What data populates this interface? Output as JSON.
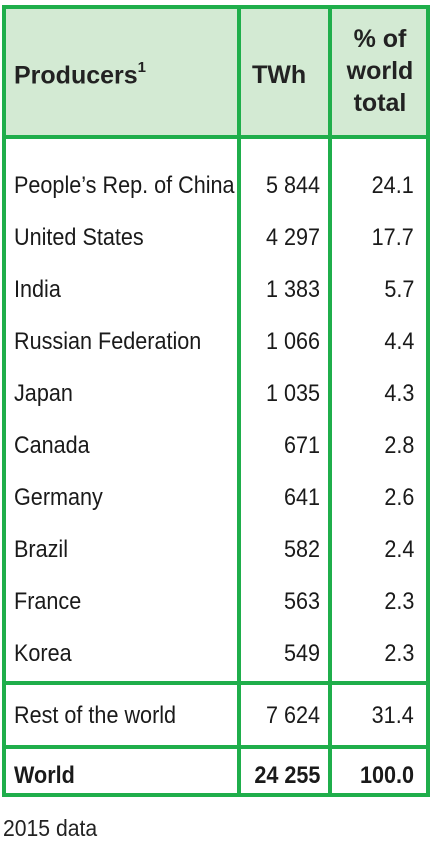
{
  "header": {
    "producers": "Producers",
    "producers_sup": "1",
    "twh": "TWh",
    "pct_line1": "% of",
    "pct_line2": "world",
    "pct_line3": "total"
  },
  "rows": [
    {
      "name": "People’s Rep. of China",
      "twh": "5 844",
      "pct": "24.1"
    },
    {
      "name": "United States",
      "twh": "4 297",
      "pct": "17.7"
    },
    {
      "name": "India",
      "twh": "1 383",
      "pct": "5.7"
    },
    {
      "name": "Russian Federation",
      "twh": "1 066",
      "pct": "4.4"
    },
    {
      "name": "Japan",
      "twh": "1 035",
      "pct": "4.3"
    },
    {
      "name": "Canada",
      "twh": "671",
      "pct": "2.8"
    },
    {
      "name": "Germany",
      "twh": "641",
      "pct": "2.6"
    },
    {
      "name": "Brazil",
      "twh": "582",
      "pct": "2.4"
    },
    {
      "name": "France",
      "twh": "563",
      "pct": "2.3"
    },
    {
      "name": "Korea",
      "twh": "549",
      "pct": "2.3"
    }
  ],
  "rest": {
    "name": "Rest of the world",
    "twh": "7 624",
    "pct": "31.4"
  },
  "total": {
    "name": "World",
    "twh": "24 255",
    "pct": "100.0"
  },
  "footnote": "2015 data",
  "colors": {
    "border": "#1fae4b",
    "header_bg": "#d3ead3"
  }
}
